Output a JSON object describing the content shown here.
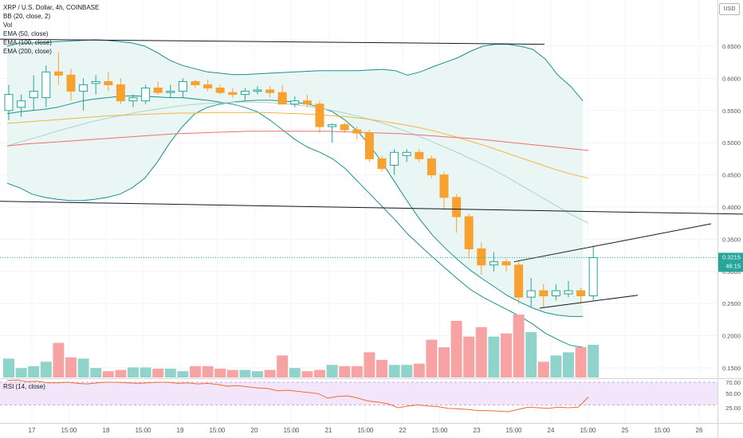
{
  "legend": {
    "title": "XRP / U.S. Dollar, 4h, COINBASE",
    "bb": "BB (20, close, 2)",
    "vol": "Vol",
    "ema50": "EMA (50, close)",
    "ema100": "EMA (100, close)",
    "ema200": "EMA (200, close)"
  },
  "currency": "USD",
  "rsi_label": "RSI (14, close)",
  "price_badge": {
    "price": "0.3215",
    "countdown": "46:15"
  },
  "colors": {
    "up": "#26a69a",
    "down": "#f7a130",
    "bb": "#1b8f8f",
    "bb_fill": "#e9f6f4",
    "ema50": "#a9d4c6",
    "ema100": "#f0b540",
    "ema200": "#ef6f6c",
    "vol_up": "#8fd3cb",
    "vol_down": "#f7a3a3",
    "rsi": "#ef6c30",
    "rsi_band": "#f3e6fb"
  },
  "chart_data": {
    "type": "candlestick",
    "price_axis": {
      "range": [
        0.13,
        0.68
      ],
      "ticks": [
        "0.6500",
        "0.6000",
        "0.5500",
        "0.5000",
        "0.4500",
        "0.4000",
        "0.3500",
        "0.3000",
        "0.2500",
        "0.2000",
        "0.1500"
      ]
    },
    "time_axis": {
      "labels": [
        "17",
        "15:00",
        "18",
        "15:00",
        "19",
        "15:00",
        "20",
        "15:00",
        "21",
        "15:00",
        "22",
        "15:00",
        "23",
        "15:00",
        "24",
        "15:00",
        "25",
        "15:00",
        "26"
      ]
    },
    "candles": [
      {
        "o": 0.55,
        "h": 0.59,
        "l": 0.535,
        "c": 0.575
      },
      {
        "o": 0.555,
        "h": 0.575,
        "l": 0.54,
        "c": 0.565
      },
      {
        "o": 0.57,
        "h": 0.605,
        "l": 0.55,
        "c": 0.58
      },
      {
        "o": 0.57,
        "h": 0.62,
        "l": 0.555,
        "c": 0.61
      },
      {
        "o": 0.61,
        "h": 0.64,
        "l": 0.59,
        "c": 0.605
      },
      {
        "o": 0.605,
        "h": 0.615,
        "l": 0.565,
        "c": 0.58
      },
      {
        "o": 0.58,
        "h": 0.6,
        "l": 0.55,
        "c": 0.59
      },
      {
        "o": 0.592,
        "h": 0.605,
        "l": 0.575,
        "c": 0.595
      },
      {
        "o": 0.595,
        "h": 0.61,
        "l": 0.58,
        "c": 0.59
      },
      {
        "o": 0.59,
        "h": 0.6,
        "l": 0.56,
        "c": 0.565
      },
      {
        "o": 0.565,
        "h": 0.575,
        "l": 0.555,
        "c": 0.57
      },
      {
        "o": 0.565,
        "h": 0.59,
        "l": 0.56,
        "c": 0.585
      },
      {
        "o": 0.585,
        "h": 0.595,
        "l": 0.575,
        "c": 0.578
      },
      {
        "o": 0.578,
        "h": 0.59,
        "l": 0.57,
        "c": 0.58
      },
      {
        "o": 0.58,
        "h": 0.6,
        "l": 0.57,
        "c": 0.595
      },
      {
        "o": 0.595,
        "h": 0.598,
        "l": 0.585,
        "c": 0.59
      },
      {
        "o": 0.59,
        "h": 0.598,
        "l": 0.58,
        "c": 0.585
      },
      {
        "o": 0.585,
        "h": 0.59,
        "l": 0.575,
        "c": 0.578
      },
      {
        "o": 0.578,
        "h": 0.585,
        "l": 0.57,
        "c": 0.575
      },
      {
        "o": 0.575,
        "h": 0.585,
        "l": 0.565,
        "c": 0.58
      },
      {
        "o": 0.58,
        "h": 0.588,
        "l": 0.575,
        "c": 0.582
      },
      {
        "o": 0.582,
        "h": 0.588,
        "l": 0.57,
        "c": 0.578
      },
      {
        "o": 0.578,
        "h": 0.59,
        "l": 0.56,
        "c": 0.56
      },
      {
        "o": 0.56,
        "h": 0.572,
        "l": 0.555,
        "c": 0.565
      },
      {
        "o": 0.565,
        "h": 0.575,
        "l": 0.555,
        "c": 0.56
      },
      {
        "o": 0.56,
        "h": 0.565,
        "l": 0.515,
        "c": 0.525
      },
      {
        "o": 0.525,
        "h": 0.53,
        "l": 0.5,
        "c": 0.528
      },
      {
        "o": 0.528,
        "h": 0.532,
        "l": 0.515,
        "c": 0.52
      },
      {
        "o": 0.52,
        "h": 0.525,
        "l": 0.505,
        "c": 0.515
      },
      {
        "o": 0.515,
        "h": 0.52,
        "l": 0.47,
        "c": 0.475
      },
      {
        "o": 0.475,
        "h": 0.48,
        "l": 0.455,
        "c": 0.46
      },
      {
        "o": 0.465,
        "h": 0.49,
        "l": 0.45,
        "c": 0.485
      },
      {
        "o": 0.48,
        "h": 0.49,
        "l": 0.47,
        "c": 0.485
      },
      {
        "o": 0.485,
        "h": 0.49,
        "l": 0.47,
        "c": 0.475
      },
      {
        "o": 0.475,
        "h": 0.48,
        "l": 0.445,
        "c": 0.45
      },
      {
        "o": 0.45,
        "h": 0.455,
        "l": 0.395,
        "c": 0.415
      },
      {
        "o": 0.415,
        "h": 0.42,
        "l": 0.36,
        "c": 0.385
      },
      {
        "o": 0.385,
        "h": 0.39,
        "l": 0.32,
        "c": 0.335
      },
      {
        "o": 0.335,
        "h": 0.345,
        "l": 0.295,
        "c": 0.31
      },
      {
        "o": 0.31,
        "h": 0.33,
        "l": 0.3,
        "c": 0.315
      },
      {
        "o": 0.315,
        "h": 0.32,
        "l": 0.3,
        "c": 0.31
      },
      {
        "o": 0.31,
        "h": 0.315,
        "l": 0.25,
        "c": 0.26
      },
      {
        "o": 0.26,
        "h": 0.29,
        "l": 0.245,
        "c": 0.27
      },
      {
        "o": 0.27,
        "h": 0.28,
        "l": 0.245,
        "c": 0.262
      },
      {
        "o": 0.262,
        "h": 0.28,
        "l": 0.255,
        "c": 0.27
      },
      {
        "o": 0.265,
        "h": 0.285,
        "l": 0.26,
        "c": 0.27
      },
      {
        "o": 0.27,
        "h": 0.275,
        "l": 0.25,
        "c": 0.262
      },
      {
        "o": 0.262,
        "h": 0.34,
        "l": 0.255,
        "c": 0.3215
      }
    ],
    "volume": [
      0.3,
      0.15,
      0.18,
      0.25,
      0.55,
      0.32,
      0.3,
      0.15,
      0.1,
      0.12,
      0.16,
      0.16,
      0.14,
      0.14,
      0.1,
      0.18,
      0.18,
      0.14,
      0.12,
      0.12,
      0.1,
      0.12,
      0.35,
      0.15,
      0.1,
      0.12,
      0.2,
      0.18,
      0.18,
      0.4,
      0.28,
      0.2,
      0.2,
      0.22,
      0.6,
      0.48,
      0.9,
      0.65,
      0.8,
      0.65,
      0.7,
      1.0,
      0.72,
      0.25,
      0.35,
      0.4,
      0.48,
      0.52
    ],
    "bollinger": {
      "upper": [
        0.65,
        0.655,
        0.655,
        0.656,
        0.657,
        0.658,
        0.659,
        0.66,
        0.659,
        0.657,
        0.655,
        0.65,
        0.64,
        0.628,
        0.62,
        0.615,
        0.61,
        0.608,
        0.606,
        0.606,
        0.607,
        0.608,
        0.609,
        0.61,
        0.611,
        0.612,
        0.612,
        0.612,
        0.612,
        0.613,
        0.614,
        0.612,
        0.605,
        0.61,
        0.618,
        0.625,
        0.632,
        0.642,
        0.65,
        0.653,
        0.653,
        0.65,
        0.645,
        0.63,
        0.605,
        0.588,
        0.565
      ],
      "middle": [
        0.545,
        0.548,
        0.55,
        0.552,
        0.555,
        0.56,
        0.565,
        0.568,
        0.57,
        0.572,
        0.573,
        0.572,
        0.571,
        0.57,
        0.57,
        0.568,
        0.566,
        0.563,
        0.56,
        0.555,
        0.548,
        0.535,
        0.52,
        0.505,
        0.493,
        0.485,
        0.475,
        0.46,
        0.44,
        0.42,
        0.4,
        0.38,
        0.358,
        0.34,
        0.322,
        0.305,
        0.288,
        0.272,
        0.26,
        0.25,
        0.24,
        0.23,
        0.218,
        0.204,
        0.194,
        0.185,
        0.182
      ],
      "lower": [
        0.437,
        0.43,
        0.42,
        0.415,
        0.412,
        0.41,
        0.41,
        0.412,
        0.415,
        0.42,
        0.43,
        0.445,
        0.47,
        0.5,
        0.525,
        0.545,
        0.555,
        0.56,
        0.563,
        0.565,
        0.566,
        0.566,
        0.565,
        0.563,
        0.56,
        0.555,
        0.548,
        0.535,
        0.518,
        0.495,
        0.468,
        0.438,
        0.408,
        0.38,
        0.356,
        0.336,
        0.318,
        0.302,
        0.288,
        0.275,
        0.262,
        0.252,
        0.243,
        0.236,
        0.232,
        0.23,
        0.23
      ]
    },
    "ema": {
      "ema50": [
        0.495,
        0.503,
        0.51,
        0.518,
        0.525,
        0.532,
        0.538,
        0.543,
        0.548,
        0.552,
        0.556,
        0.559,
        0.561,
        0.562,
        0.563,
        0.563,
        0.562,
        0.56,
        0.557,
        0.553,
        0.548,
        0.542,
        0.535,
        0.527,
        0.518,
        0.508,
        0.497,
        0.486,
        0.474,
        0.462,
        0.448,
        0.433,
        0.418,
        0.403,
        0.388,
        0.375
      ],
      "ema100": [
        0.53,
        0.532,
        0.534,
        0.536,
        0.538,
        0.54,
        0.542,
        0.543,
        0.544,
        0.545,
        0.546,
        0.546,
        0.547,
        0.547,
        0.547,
        0.547,
        0.546,
        0.545,
        0.544,
        0.542,
        0.54,
        0.537,
        0.533,
        0.529,
        0.524,
        0.518,
        0.511,
        0.503,
        0.495,
        0.486,
        0.477,
        0.468,
        0.459,
        0.451,
        0.445
      ],
      "ema200": [
        0.495,
        0.498,
        0.5,
        0.502,
        0.504,
        0.506,
        0.508,
        0.51,
        0.512,
        0.514,
        0.515,
        0.516,
        0.517,
        0.518,
        0.518,
        0.518,
        0.518,
        0.518,
        0.517,
        0.516,
        0.515,
        0.514,
        0.512,
        0.51,
        0.508,
        0.506,
        0.503,
        0.5,
        0.497,
        0.494,
        0.491,
        0.488
      ]
    },
    "rsi": {
      "ticks": [
        "70.00",
        "50.00",
        "25.00"
      ],
      "values": [
        73,
        74,
        71,
        72,
        69,
        69,
        70,
        68,
        67,
        69,
        70,
        70,
        69,
        68,
        69,
        70,
        70,
        68,
        69,
        67,
        68,
        66,
        63,
        64,
        62,
        60,
        59,
        55,
        56,
        54,
        52,
        50,
        42,
        45,
        46,
        42,
        37,
        35,
        32,
        25,
        28,
        30,
        28,
        27,
        24,
        23,
        22,
        20,
        20,
        19,
        18,
        22,
        26,
        25,
        24,
        26,
        25,
        26,
        44
      ]
    },
    "lines": [
      {
        "from": [
          0,
          0.661
        ],
        "to": [
          683,
          0.653
        ]
      },
      {
        "from": [
          0,
          0.409
        ],
        "to": [
          932,
          0.389
        ]
      }
    ]
  }
}
